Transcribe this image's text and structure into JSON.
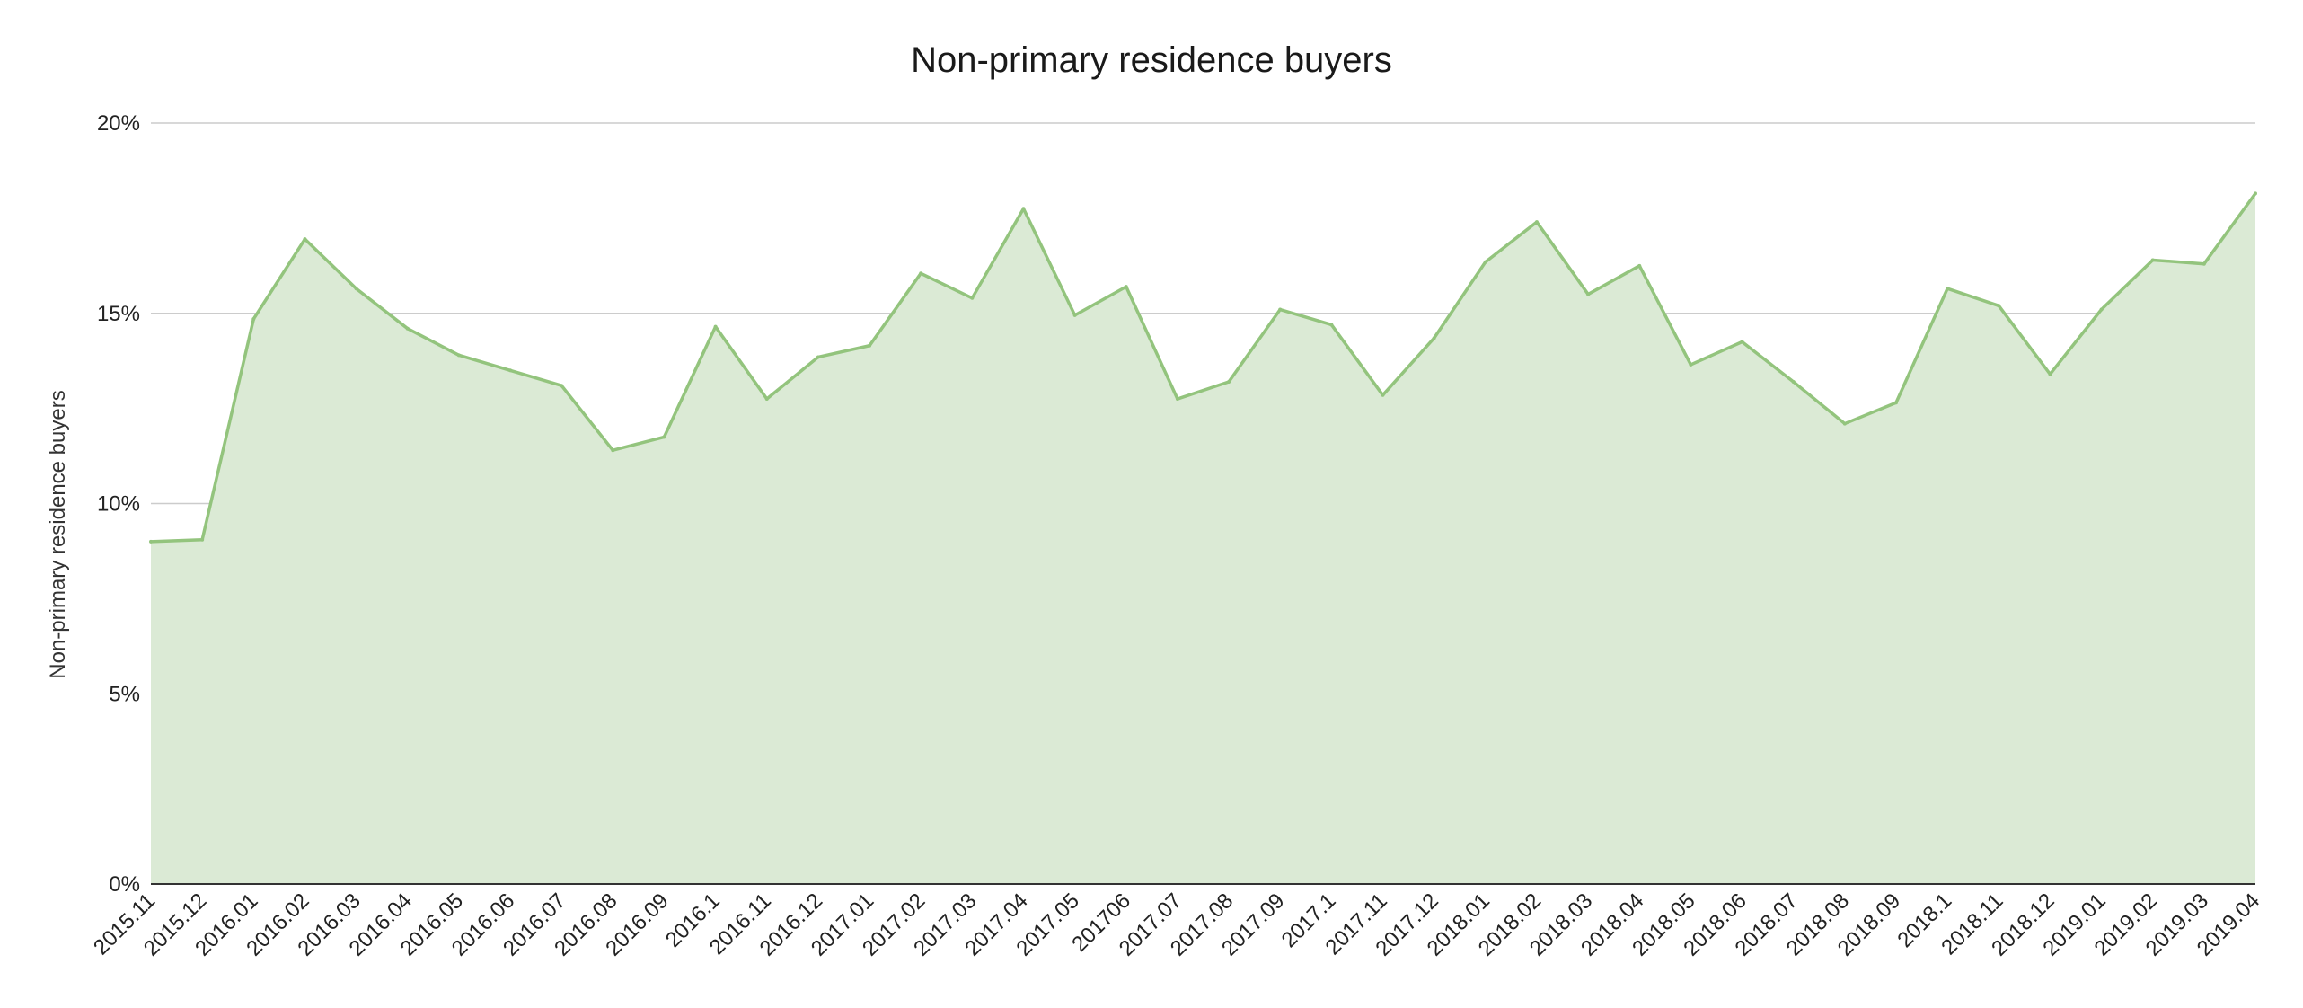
{
  "chart_data": {
    "type": "area",
    "title": "Non-primary residence buyers",
    "xlabel": "",
    "ylabel": "Non-primary residence buyers",
    "ylim": [
      0,
      20
    ],
    "yticks": [
      0,
      5,
      10,
      15,
      20
    ],
    "ytick_labels": [
      "0%",
      "5%",
      "10%",
      "15%",
      "20%"
    ],
    "grid": true,
    "legend": "none",
    "categories": [
      "2015.11",
      "2015.12",
      "2016.01",
      "2016.02",
      "2016.03",
      "2016.04",
      "2016.05",
      "2016.06",
      "2016.07",
      "2016.08",
      "2016.09",
      "2016.1",
      "2016.11",
      "2016.12",
      "2017.01",
      "2017.02",
      "2017.03",
      "2017.04",
      "2017.05",
      "201706",
      "2017.07",
      "2017.08",
      "2017.09",
      "2017.1",
      "2017.11",
      "2017.12",
      "2018.01",
      "2018.02",
      "2018.03",
      "2018.04",
      "2018.05",
      "2018.06",
      "2018.07",
      "2018.08",
      "2018.09",
      "2018.1",
      "2018.11",
      "2018.12",
      "2019.01",
      "2019.02",
      "2019.03",
      "2019.04"
    ],
    "series": [
      {
        "values": [
          9.0,
          9.05,
          14.85,
          16.95,
          15.65,
          14.6,
          13.9,
          13.5,
          13.1,
          11.4,
          11.75,
          14.65,
          12.75,
          13.85,
          14.15,
          16.05,
          15.4,
          17.75,
          14.95,
          15.7,
          12.75,
          13.2,
          15.1,
          14.7,
          12.85,
          14.35,
          16.35,
          17.4,
          15.5,
          16.25,
          13.65,
          14.25,
          13.2,
          12.1,
          12.65,
          15.65,
          15.2,
          13.4,
          15.1,
          16.4,
          16.3,
          18.15
        ],
        "color": "#93c47d",
        "fill": "#dbead5"
      }
    ]
  }
}
